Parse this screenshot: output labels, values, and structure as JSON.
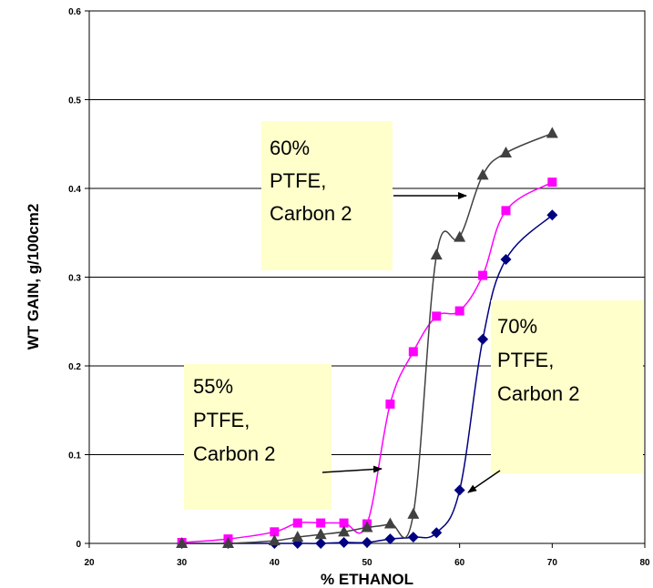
{
  "chart_data": {
    "type": "line",
    "title": "",
    "xlabel": "% ETHANOL",
    "ylabel": "WT GAIN, g/100cm2",
    "xlim": [
      20,
      80
    ],
    "ylim": [
      0,
      0.6
    ],
    "x_ticks": [
      "20",
      "30",
      "40",
      "50",
      "60",
      "70",
      "80"
    ],
    "y_ticks": [
      "0",
      "0.1",
      "0.2",
      "0.3",
      "0.4",
      "0.5",
      "0.6"
    ],
    "grid": "horizontal",
    "legend": "none",
    "series": [
      {
        "marker": "diamond",
        "color": "#000080",
        "x": [
          30,
          35,
          40,
          42.5,
          45,
          47.5,
          50,
          52.5,
          55,
          57.5,
          60,
          62.5,
          65,
          70
        ],
        "y": [
          0,
          0,
          0,
          0,
          0,
          0.001,
          0.001,
          0.005,
          0.007,
          0.012,
          0.06,
          0.23,
          0.32,
          0.37
        ]
      },
      {
        "marker": "square",
        "color": "#ff00ff",
        "x": [
          30,
          35,
          40,
          42.5,
          45,
          47.5,
          50,
          52.5,
          55,
          57.5,
          60,
          62.5,
          65,
          70
        ],
        "y": [
          0.001,
          0.005,
          0.013,
          0.023,
          0.023,
          0.023,
          0.022,
          0.157,
          0.216,
          0.256,
          0.262,
          0.302,
          0.375,
          0.407
        ]
      },
      {
        "marker": "triangle",
        "color": "#404040",
        "x": [
          30,
          35,
          40,
          42.5,
          45,
          47.5,
          50,
          52.5,
          55,
          57.5,
          60,
          62.5,
          65,
          70
        ],
        "y": [
          0,
          0,
          0.003,
          0.007,
          0.01,
          0.013,
          0.018,
          0.022,
          0.033,
          0.325,
          0.345,
          0.415,
          0.44,
          0.462
        ]
      }
    ],
    "annotations": [
      {
        "lines": [
          "60%",
          "PTFE,",
          "Carbon 2"
        ]
      },
      {
        "lines": [
          "55%",
          "PTFE,",
          "Carbon 2"
        ]
      },
      {
        "lines": [
          "70%",
          "PTFE,",
          "Carbon 2"
        ]
      }
    ]
  }
}
